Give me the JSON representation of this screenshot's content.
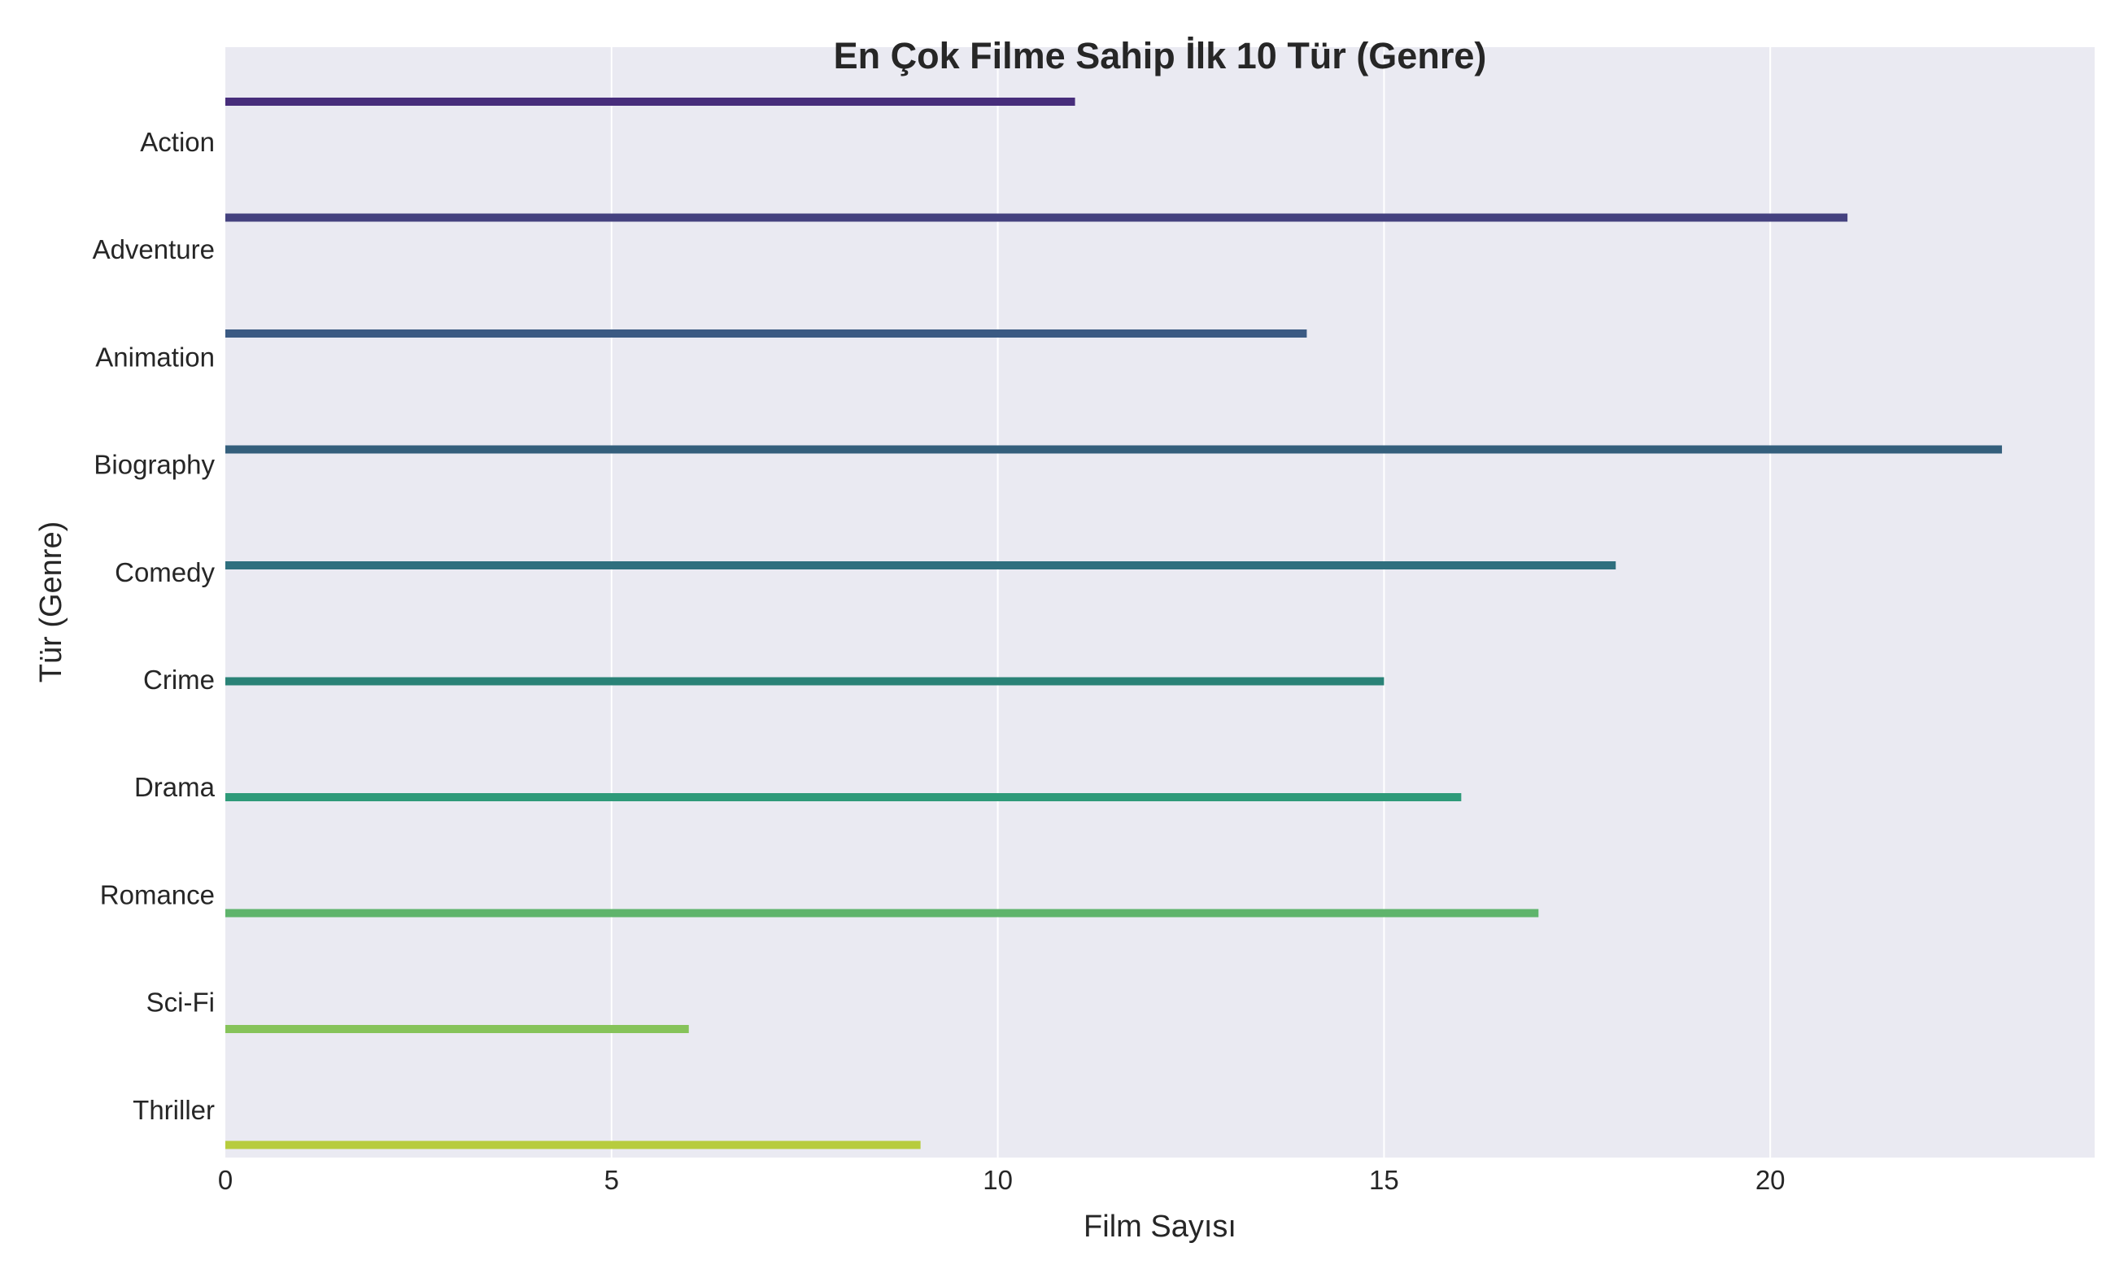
{
  "chart_data": {
    "type": "bar",
    "orientation": "horizontal",
    "title": "En Çok Filme Sahip İlk 10 Tür (Genre)",
    "xlabel": "Film Sayısı",
    "ylabel": "Tür (Genre)",
    "categories": [
      "Action",
      "Adventure",
      "Animation",
      "Biography",
      "Comedy",
      "Crime",
      "Drama",
      "Romance",
      "Sci-Fi",
      "Thriller"
    ],
    "values": [
      11,
      21,
      14,
      23,
      18,
      15,
      16,
      17,
      6,
      9
    ],
    "colors": [
      "#482475",
      "#414487",
      "#35608d",
      "#2a788e",
      "#21918c",
      "#22a884",
      "#44bf70",
      "#7ad151",
      "#bddf26",
      "#fde725"
    ],
    "bar_colors_observed": [
      "#472d7b",
      "#44417f",
      "#3b5a83",
      "#345f7c",
      "#2f6f7e",
      "#2a8277",
      "#2e9a79",
      "#5fb46c",
      "#86c35a",
      "#b7cc3d"
    ],
    "xlim": [
      0,
      24.2
    ],
    "xticks": [
      0,
      5,
      10,
      15,
      20
    ],
    "grid": true,
    "background": "#eaeaf2"
  }
}
